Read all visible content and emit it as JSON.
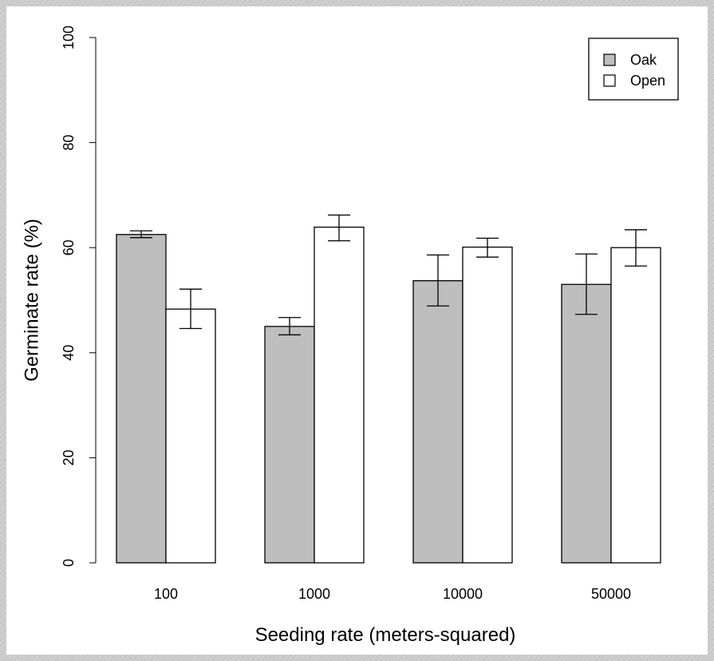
{
  "chart_data": {
    "type": "bar",
    "title": "",
    "xlabel": "Seeding rate (meters-squared)",
    "ylabel": "Germinate rate (%)",
    "ylim": [
      0,
      100
    ],
    "yticks": [
      0,
      20,
      40,
      60,
      80,
      100
    ],
    "categories": [
      "100",
      "1000",
      "10000",
      "50000"
    ],
    "series": [
      {
        "name": "Oak",
        "color": "#bebebe",
        "values": [
          62.5,
          45.0,
          53.7,
          53.0
        ],
        "err_low": [
          61.9,
          43.4,
          48.9,
          47.3
        ],
        "err_high": [
          63.2,
          46.7,
          58.6,
          58.8
        ]
      },
      {
        "name": "Open",
        "color": "#ffffff",
        "values": [
          48.3,
          63.9,
          60.1,
          60.0
        ],
        "err_low": [
          44.6,
          61.3,
          58.2,
          56.5
        ],
        "err_high": [
          52.1,
          66.2,
          61.8,
          63.4
        ]
      }
    ],
    "grid": false,
    "legend_position": "top-right"
  }
}
